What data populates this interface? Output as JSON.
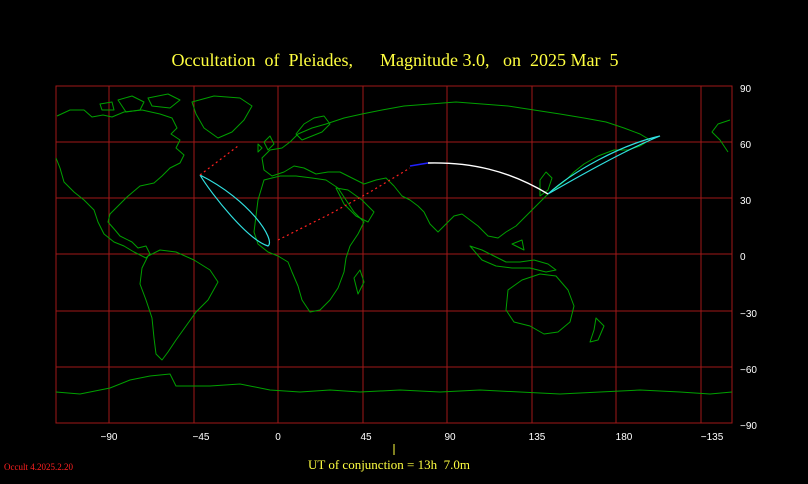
{
  "title": "Occultation  of  Pleiades,      Magnitude 3.0,   on  2025 Mar  5",
  "conjunction_text": "UT of conjunction = 13h  7.0m",
  "version": "Occult 4.2025.2.20",
  "longitude_labels": [
    "−90",
    "−45",
    "0",
    "45",
    "90",
    "135",
    "180",
    "−135"
  ],
  "latitude_labels": [
    "90",
    "60",
    "30",
    "0",
    "−30",
    "−60",
    "−90"
  ],
  "colors": {
    "background": "#000000",
    "grid": "#a01818",
    "coastline": "#00a000",
    "title": "#ffff40",
    "limit_line": "#30e0e0",
    "path_daylight": "#ffffff",
    "path_night": "#2020ff",
    "path_below_horizon": "#ff2020",
    "label": "#ffffff"
  }
}
